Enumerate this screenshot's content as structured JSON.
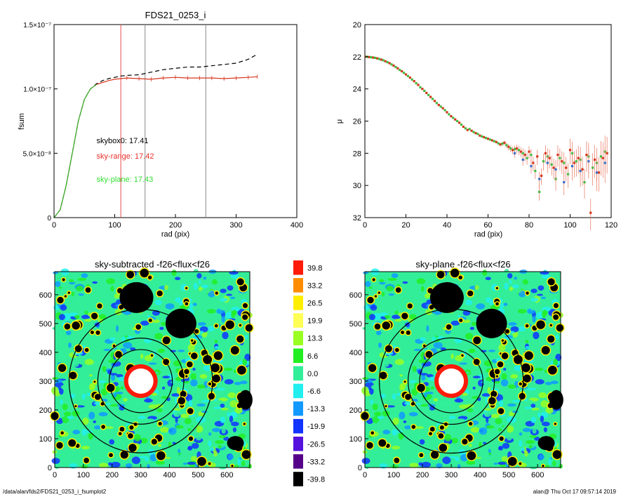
{
  "footer": {
    "path": "/data/alan/fds2/FDS21_0253_i_fsumplot2",
    "stamp": "alan@  Thu Oct 17 09:57:14 2019"
  },
  "chart_data": [
    {
      "id": "fsum",
      "type": "line",
      "title": "FDS21_0253_i",
      "xlabel": "rad (pix)",
      "ylabel": "fsum",
      "xlim": [
        0,
        400
      ],
      "ylim": [
        0,
        1.5e-07
      ],
      "xticks": [
        0,
        100,
        200,
        300,
        400
      ],
      "yticks": [
        {
          "value": 0,
          "label": "0"
        },
        {
          "value": 5e-08,
          "label": "5.0×10⁻⁸"
        },
        {
          "value": 1e-07,
          "label": "1.0×10⁻⁷"
        },
        {
          "value": 1.5e-07,
          "label": "1.5×10⁻⁷"
        }
      ],
      "vlines": [
        {
          "x": 110,
          "color": "#e84a4a"
        },
        {
          "x": 150,
          "color": "#888888"
        },
        {
          "x": 250,
          "color": "#888888"
        }
      ],
      "annotations": [
        {
          "text": "skybox0: 17.41",
          "color": "#000000",
          "x": 70,
          "y": 6e-08
        },
        {
          "text": "sky-range: 17.42",
          "color": "#e8302a",
          "x": 70,
          "y": 4.8e-08
        },
        {
          "text": "sky-plane: 17.43",
          "color": "#33dd33",
          "x": 70,
          "y": 3e-08
        }
      ],
      "series": [
        {
          "style": "dashed",
          "color": "#000000",
          "x": [
            0,
            10,
            20,
            30,
            40,
            50,
            60,
            70,
            80,
            90,
            100,
            110,
            120,
            140,
            160,
            180,
            200,
            220,
            240,
            260,
            280,
            300,
            320,
            335
          ],
          "y": [
            0,
            6e-09,
            2.5e-08,
            5e-08,
            7.5e-08,
            9.2e-08,
            1e-07,
            1.04e-07,
            1.065e-07,
            1.08e-07,
            1.09e-07,
            1.1e-07,
            1.105e-07,
            1.11e-07,
            1.13e-07,
            1.15e-07,
            1.16e-07,
            1.17e-07,
            1.17e-07,
            1.18e-07,
            1.19e-07,
            1.2e-07,
            1.23e-07,
            1.27e-07
          ]
        },
        {
          "style": "solid",
          "color": "#d6361e",
          "x": [
            0,
            10,
            20,
            30,
            40,
            50,
            60,
            70,
            80,
            90,
            100,
            110,
            120,
            140,
            160,
            180,
            200,
            220,
            240,
            260,
            280,
            300,
            320,
            335
          ],
          "y": [
            0,
            6e-09,
            2.5e-08,
            5e-08,
            7.5e-08,
            9.2e-08,
            1e-07,
            1.035e-07,
            1.05e-07,
            1.065e-07,
            1.075e-07,
            1.08e-07,
            1.085e-07,
            1.08e-07,
            1.075e-07,
            1.085e-07,
            1.09e-07,
            1.085e-07,
            1.085e-07,
            1.085e-07,
            1.08e-07,
            1.085e-07,
            1.09e-07,
            1.095e-07
          ]
        },
        {
          "style": "solid",
          "color": "#33bb33",
          "x": [
            0,
            10,
            20,
            30,
            40,
            50,
            60,
            70
          ],
          "y": [
            0,
            6e-09,
            2.5e-08,
            5e-08,
            7.5e-08,
            9.2e-08,
            1e-07,
            1.035e-07
          ]
        }
      ]
    },
    {
      "id": "profile",
      "type": "scatter",
      "title": "",
      "xlabel": "rad (pix)",
      "ylabel": "μ",
      "xlim": [
        0,
        120
      ],
      "ylim": [
        32,
        20
      ],
      "xticks": [
        0,
        20,
        40,
        60,
        80,
        100,
        120
      ],
      "yticks": [
        20,
        22,
        24,
        26,
        28,
        30,
        32
      ],
      "series": [
        {
          "color": "#d6361e",
          "x": [
            0.5,
            2,
            4,
            6,
            8,
            10,
            12,
            14,
            16,
            18,
            20,
            22,
            24,
            26,
            28,
            30,
            32,
            34,
            36,
            38,
            40,
            42,
            44,
            46,
            48,
            50,
            52,
            54,
            56,
            58,
            60,
            62,
            64,
            66,
            68,
            70,
            72,
            74,
            76,
            78,
            80,
            82,
            84,
            86,
            88,
            90,
            92,
            94,
            96,
            98,
            100,
            102,
            104,
            106,
            108,
            110,
            112,
            114,
            116,
            118
          ],
          "y": [
            22.0,
            22.02,
            22.05,
            22.1,
            22.18,
            22.28,
            22.4,
            22.55,
            22.72,
            22.9,
            23.1,
            23.3,
            23.52,
            23.75,
            24.0,
            24.25,
            24.5,
            24.75,
            25.0,
            25.2,
            25.45,
            25.7,
            25.9,
            26.1,
            26.35,
            26.55,
            26.6,
            26.75,
            26.9,
            27.0,
            27.1,
            27.2,
            27.3,
            27.45,
            27.35,
            27.6,
            27.8,
            27.7,
            27.9,
            28.1,
            27.9,
            28.6,
            28.2,
            29.4,
            28.0,
            28.3,
            28.9,
            28.1,
            28.5,
            28.9,
            27.8,
            28.6,
            28.3,
            29.0,
            28.1,
            31.7,
            28.4,
            29.2,
            28.3,
            28.0
          ]
        },
        {
          "color": "#44bb44",
          "x": [
            1,
            3,
            5,
            7,
            9,
            11,
            13,
            15,
            17,
            19,
            21,
            23,
            25,
            27,
            29,
            31,
            33,
            35,
            37,
            39,
            41,
            43,
            45,
            47,
            49,
            51,
            53,
            55,
            57,
            59,
            61,
            63,
            65,
            67,
            69,
            71,
            73,
            75,
            77,
            79,
            81,
            83,
            85,
            87,
            89,
            91,
            93,
            95,
            97,
            99,
            101,
            103,
            105,
            107,
            109,
            111,
            113,
            115,
            117
          ],
          "y": [
            22.0,
            22.03,
            22.07,
            22.14,
            22.22,
            22.34,
            22.48,
            22.64,
            22.82,
            23.0,
            23.2,
            23.42,
            23.65,
            23.9,
            24.12,
            24.38,
            24.62,
            24.88,
            25.1,
            25.32,
            25.58,
            25.8,
            26.0,
            26.22,
            26.45,
            26.5,
            26.68,
            26.8,
            26.95,
            27.05,
            27.15,
            27.25,
            27.38,
            27.4,
            27.5,
            27.7,
            27.75,
            27.8,
            28.0,
            28.3,
            28.1,
            29.1,
            30.4,
            28.5,
            28.2,
            28.7,
            29.6,
            28.3,
            28.6,
            29.3,
            28.0,
            28.5,
            28.4,
            29.8,
            28.2,
            28.9,
            28.6,
            28.2,
            27.9
          ]
        },
        {
          "color": "#3a6fc8",
          "x": [
            73,
            77,
            81,
            85,
            89,
            93,
            97,
            101,
            105,
            109,
            113,
            117
          ],
          "y": [
            28.0,
            28.4,
            28.8,
            29.6,
            28.6,
            29.0,
            29.8,
            28.8,
            29.1,
            28.5,
            29.2,
            28.6
          ]
        }
      ]
    },
    {
      "id": "sky-subtracted",
      "type": "heatmap",
      "title": "sky-subtracted -f26<flux<f26",
      "xlim": [
        0,
        680
      ],
      "ylim": [
        0,
        680
      ],
      "xticks": [
        0,
        100,
        200,
        300,
        400,
        500,
        600
      ],
      "yticks": [
        0,
        100,
        200,
        300,
        400,
        500,
        600
      ]
    },
    {
      "id": "sky-plane",
      "type": "heatmap",
      "title": "sky-plane -f26<flux<f26",
      "xlim": [
        0,
        680
      ],
      "ylim": [
        0,
        680
      ],
      "xticks": [
        0,
        100,
        200,
        300,
        400,
        500,
        600
      ],
      "yticks": [
        0,
        100,
        200,
        300,
        400,
        500,
        600
      ]
    },
    {
      "id": "colorbar",
      "type": "table",
      "levels": [
        {
          "label": "39.8",
          "color": "#ff1a0a"
        },
        {
          "label": "33.2",
          "color": "#ff8c00"
        },
        {
          "label": "26.5",
          "color": "#ffee00"
        },
        {
          "label": "19.9",
          "color": "#ffff55"
        },
        {
          "label": "13.3",
          "color": "#99ff22"
        },
        {
          "label": "6.6",
          "color": "#22ee22"
        },
        {
          "label": "0.0",
          "color": "#33ee99"
        },
        {
          "label": "-6.6",
          "color": "#22eeee"
        },
        {
          "label": "-13.3",
          "color": "#1199ff"
        },
        {
          "label": "-19.9",
          "color": "#1133ff"
        },
        {
          "label": "-26.5",
          "color": "#5511dd"
        },
        {
          "label": "-33.2",
          "color": "#550088"
        },
        {
          "label": "-39.8",
          "color": "#000000"
        }
      ]
    }
  ]
}
